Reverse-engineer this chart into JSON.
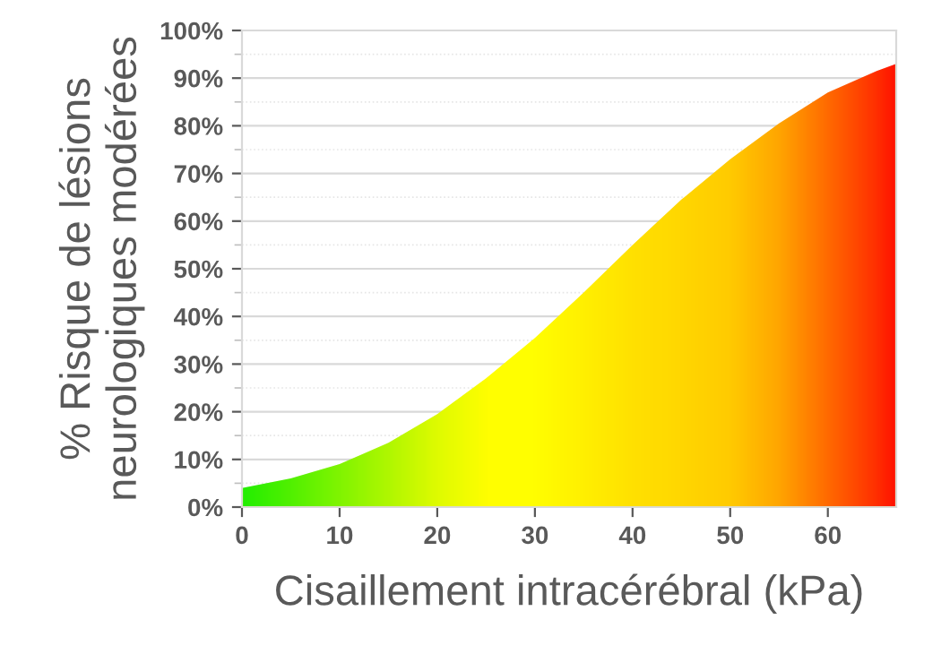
{
  "chart_data": {
    "type": "area",
    "xlabel": "Cisaillement intracérébral (kPa)",
    "ylabel": "% Risque de lésions\nneurologiques modérées",
    "x": [
      0,
      5,
      10,
      15,
      20,
      25,
      30,
      35,
      40,
      45,
      50,
      55,
      60,
      65,
      67
    ],
    "series": [
      {
        "values": [
          4,
          6,
          9,
          13.5,
          19.5,
          27,
          35.5,
          45,
          55,
          64.5,
          73,
          80.5,
          87,
          91.5,
          93
        ],
        "colors": [
          "#11ee00",
          "#44f000",
          "#77f500",
          "#aaf800",
          "#ddfc00",
          "#ffff00",
          "#ffff00",
          "#fff000",
          "#ffe000",
          "#ffd500",
          "#ffc800",
          "#ffa000",
          "#ff6000",
          "#ff2000",
          "#ff0000"
        ]
      }
    ],
    "xlim": [
      0,
      67
    ],
    "ylim": [
      0,
      100
    ],
    "xticks": [
      0,
      10,
      20,
      30,
      40,
      50,
      60
    ],
    "yticks": [
      {
        "value": 0,
        "label": "0%"
      },
      {
        "value": 10,
        "label": "10%"
      },
      {
        "value": 20,
        "label": "20%"
      },
      {
        "value": 30,
        "label": "30%"
      },
      {
        "value": 40,
        "label": "40%"
      },
      {
        "value": 50,
        "label": "50%"
      },
      {
        "value": 60,
        "label": "60%"
      },
      {
        "value": 70,
        "label": "70%"
      },
      {
        "value": 80,
        "label": "80%"
      },
      {
        "value": 90,
        "label": "90%"
      },
      {
        "value": 100,
        "label": "100%"
      }
    ],
    "grid": "y"
  }
}
